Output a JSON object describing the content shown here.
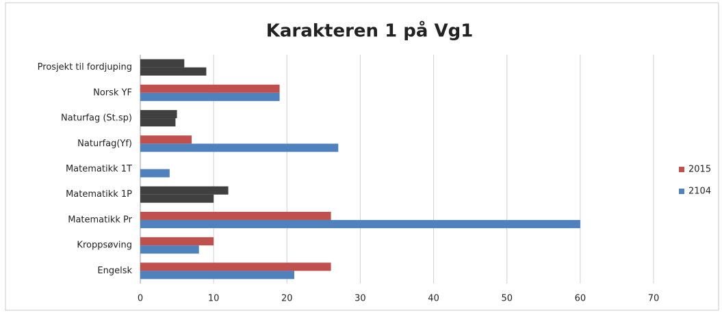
{
  "chart_data": {
    "type": "hbar",
    "title": "Karakteren 1 på Vg1",
    "categories": [
      "Engelsk",
      "Kroppsøving",
      "Matematikk Pr",
      "Matematikk 1P",
      "Matematikk 1T",
      "Naturfag(Yf)",
      "Naturfag (St.sp)",
      "Norsk YF",
      "Prosjekt til fordjuping"
    ],
    "series": [
      {
        "name": "2015",
        "color": "#c0504d",
        "values": [
          26,
          10,
          26,
          12,
          null,
          7,
          5,
          19,
          6
        ],
        "colors": [
          "#c0504d",
          "#c0504d",
          "#c0504d",
          "#404040",
          "#c0504d",
          "#c0504d",
          "#404040",
          "#c0504d",
          "#404040"
        ]
      },
      {
        "name": "2104",
        "color": "#4f81bd",
        "values": [
          21,
          8,
          60,
          10,
          4,
          27,
          4.8,
          19,
          9
        ],
        "colors": [
          "#4f81bd",
          "#4f81bd",
          "#4f81bd",
          "#404040",
          "#4f81bd",
          "#4f81bd",
          "#404040",
          "#4f81bd",
          "#404040"
        ]
      }
    ],
    "xlim": [
      0,
      70
    ],
    "xticks": [
      0,
      10,
      20,
      30,
      40,
      50,
      60,
      70
    ],
    "grid": true,
    "legend": "right"
  }
}
